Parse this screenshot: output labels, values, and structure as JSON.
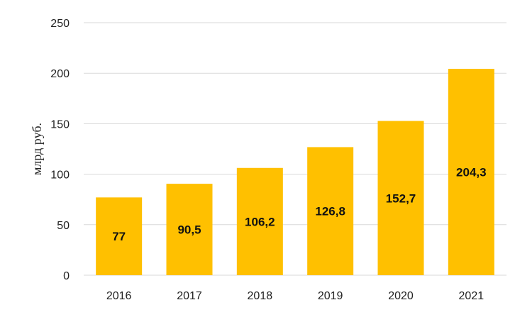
{
  "chart_data": {
    "type": "bar",
    "title": "",
    "xlabel": "",
    "ylabel": "млрд руб.",
    "categories": [
      "2016",
      "2017",
      "2018",
      "2019",
      "2020",
      "2021"
    ],
    "values": [
      77,
      90.5,
      106.2,
      126.8,
      152.7,
      204.3
    ],
    "value_labels": [
      "77",
      "90,5",
      "106,2",
      "126,8",
      "152,7",
      "204,3"
    ],
    "ylim": [
      0,
      250
    ],
    "yticks": [
      0,
      50,
      100,
      150,
      200,
      250
    ],
    "ytick_labels": [
      "0",
      "50",
      "100",
      "150",
      "200",
      "250"
    ],
    "grid": true,
    "legend": "none",
    "bar_color": "#FFC000"
  }
}
